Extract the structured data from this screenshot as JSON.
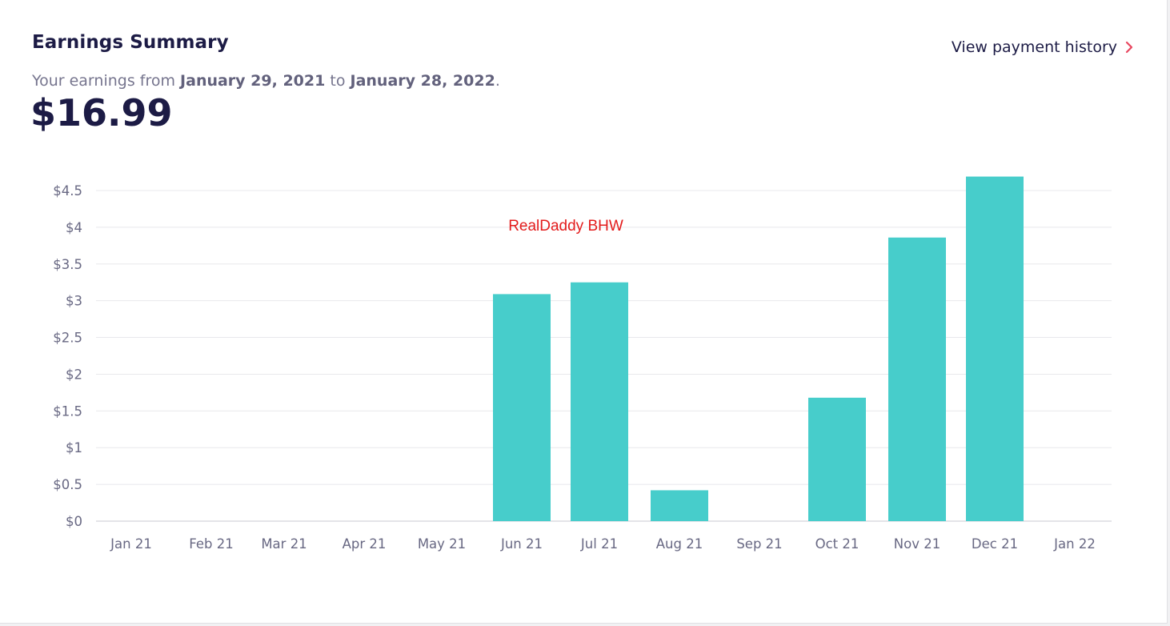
{
  "header": {
    "title": "Earnings Summary",
    "history_link": "View payment history",
    "range_prefix": "Your earnings from",
    "range_start": "January 29, 2021",
    "range_mid": "to",
    "range_end": "January 28, 2022",
    "range_suffix": ".",
    "total": "$16.99"
  },
  "colors": {
    "bar": "#47cdcb",
    "accent": "#e8475f",
    "title": "#1c1b45",
    "grid": "#e8e8ec",
    "watermark": "#e31b1b"
  },
  "watermark": "RealDaddy BHW",
  "chart_data": {
    "type": "bar",
    "categories": [
      "Jan 21",
      "Feb 21",
      "Mar 21",
      "Apr 21",
      "May 21",
      "Jun 21",
      "Jul 21",
      "Aug 21",
      "Sep 21",
      "Oct 21",
      "Nov 21",
      "Dec 21",
      "Jan 22"
    ],
    "values": [
      0,
      0,
      0,
      0,
      0,
      3.09,
      3.25,
      0.42,
      0,
      1.68,
      3.86,
      4.69,
      0
    ],
    "y_ticks": [
      0,
      0.5,
      1,
      1.5,
      2,
      2.5,
      3,
      3.5,
      4,
      4.5
    ],
    "y_tick_labels": [
      "$0",
      "$0.5",
      "$1",
      "$1.5",
      "$2",
      "$2.5",
      "$3",
      "$3.5",
      "$4",
      "$4.5"
    ],
    "ylim": [
      0,
      4.5
    ],
    "grid": true,
    "legend": "none"
  }
}
